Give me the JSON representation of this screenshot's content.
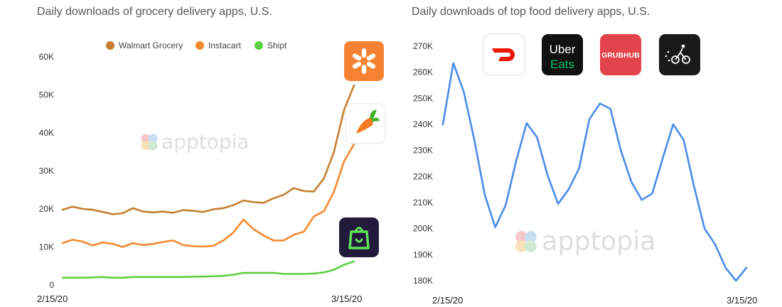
{
  "watermark": "apptopia",
  "chart_data": [
    {
      "type": "line",
      "title": "Daily downloads of grocery delivery apps, U.S.",
      "x_tick_labels": [
        "2/15/20",
        "3/15/20"
      ],
      "y_ticks": [
        0,
        10000,
        20000,
        30000,
        40000,
        50000,
        60000
      ],
      "y_tick_labels": [
        "0",
        "10K",
        "20K",
        "30K",
        "40K",
        "50K",
        "60K"
      ],
      "ylim": [
        0,
        62000
      ],
      "legend_position": "top",
      "series": [
        {
          "name": "Walmart Grocery",
          "color": "#c47f2e",
          "values": [
            19800,
            20600,
            20000,
            19800,
            19200,
            18600,
            18900,
            20200,
            19300,
            19100,
            19300,
            19000,
            19700,
            19500,
            19200,
            19900,
            20200,
            21000,
            22200,
            21800,
            21600,
            22800,
            23700,
            25500,
            24700,
            24600,
            28000,
            35000,
            46000,
            52500
          ]
        },
        {
          "name": "Instacart",
          "color": "#f5892e",
          "values": [
            11000,
            11900,
            11400,
            10400,
            11200,
            10800,
            10000,
            11000,
            10500,
            10800,
            11300,
            11700,
            10500,
            10200,
            10100,
            10300,
            11700,
            13800,
            17200,
            14700,
            13000,
            11700,
            11700,
            13200,
            14000,
            18000,
            19400,
            24500,
            32500,
            37000
          ]
        },
        {
          "name": "Shipt",
          "color": "#5bd13f",
          "values": [
            1900,
            1900,
            1900,
            2000,
            2100,
            1900,
            1900,
            2100,
            2100,
            2100,
            2100,
            2100,
            2100,
            2200,
            2200,
            2300,
            2400,
            2700,
            3200,
            3200,
            3200,
            3200,
            2900,
            2900,
            2900,
            3000,
            3300,
            4000,
            5300,
            6200
          ]
        }
      ],
      "app_icons": [
        "walmart-spark-icon",
        "instacart-carrot-icon",
        "shipt-bag-icon"
      ]
    },
    {
      "type": "line",
      "title": "Daily downloads of top food delivery apps, U.S.",
      "x_tick_labels": [
        "2/15/20",
        "3/15/20"
      ],
      "y_ticks": [
        180000,
        190000,
        200000,
        210000,
        220000,
        230000,
        240000,
        250000,
        260000,
        270000
      ],
      "y_tick_labels": [
        "180K",
        "190K",
        "200K",
        "210K",
        "220K",
        "230K",
        "240K",
        "250K",
        "260K",
        "270K"
      ],
      "ylim": [
        177000,
        273000
      ],
      "series": [
        {
          "color": "#4a8ce8",
          "values": [
            240000,
            263500,
            252500,
            234000,
            213000,
            200500,
            209000,
            226000,
            240500,
            235000,
            220500,
            209500,
            215000,
            223000,
            242000,
            248000,
            246000,
            230000,
            218000,
            211000,
            213500,
            227000,
            240000,
            234000,
            216000,
            200000,
            194000,
            185000,
            180000,
            185000
          ]
        }
      ],
      "app_icons": [
        {
          "icon": "doordash-icon",
          "label": ""
        },
        {
          "icon": "uber-eats-icon",
          "label": "Uber Eats"
        },
        {
          "icon": "grubhub-icon",
          "label": "GRUBHUB"
        },
        {
          "icon": "postmates-icon",
          "label": ""
        }
      ]
    }
  ]
}
